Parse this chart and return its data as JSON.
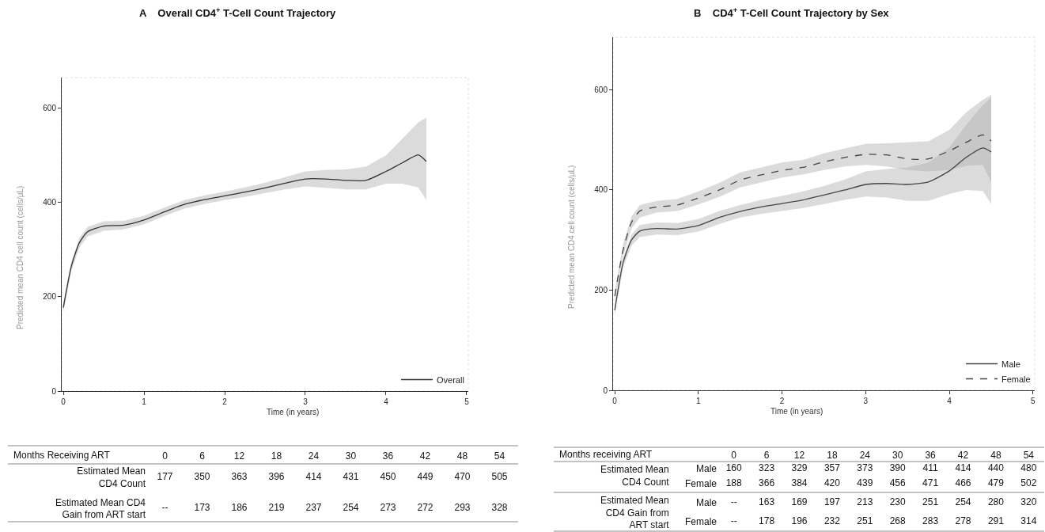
{
  "chart_data": [
    {
      "type": "line",
      "title": "A    Overall CD4$^{+}$ T-Cell Count Trajectory",
      "xlabel": "Time (in years)",
      "ylabel": "Predicted mean CD4 cell count (cells/µL)",
      "xlim": [
        -0.02,
        5.02
      ],
      "xticks": [
        0,
        1,
        2,
        3,
        4,
        5
      ],
      "ylim": [
        0,
        665
      ],
      "yticks": [
        0,
        200,
        400,
        600
      ],
      "grid": false,
      "legend": "bottom right",
      "x": [
        0,
        0.1,
        0.2,
        0.3,
        0.5,
        0.75,
        1,
        1.25,
        1.5,
        1.75,
        2,
        2.25,
        2.5,
        2.75,
        3,
        3.25,
        3.5,
        3.75,
        4,
        4.2,
        4.4,
        4.5
      ],
      "series": [
        {
          "name": "Overall",
          "color": "#333333",
          "line_style": "solid",
          "values": [
            177,
            265,
            315,
            338,
            350,
            352,
            363,
            380,
            396,
            406,
            414,
            422,
            431,
            441,
            450,
            450,
            447,
            447,
            466,
            484,
            501,
            487
          ],
          "lower": [
            167,
            255,
            305,
            328,
            340,
            343,
            354,
            371,
            387,
            397,
            405,
            412,
            420,
            428,
            434,
            431,
            428,
            428,
            440,
            440,
            432,
            405
          ],
          "upper": [
            187,
            275,
            325,
            348,
            360,
            361,
            372,
            389,
            405,
            415,
            423,
            432,
            442,
            454,
            466,
            469,
            470,
            476,
            500,
            535,
            570,
            580
          ]
        }
      ]
    },
    {
      "type": "line",
      "title": "B    CD4$^{+}$ T-Cell Count Trajectory by Sex",
      "xlabel": "Time (in years)",
      "ylabel": "Predicted mean CD4 cell count (cells/µL)",
      "xlim": [
        -0.02,
        5.02
      ],
      "xticks": [
        0,
        1,
        2,
        3,
        4,
        5
      ],
      "ylim": [
        0,
        705
      ],
      "yticks": [
        0,
        200,
        400,
        600
      ],
      "grid": false,
      "legend": "bottom right",
      "x": [
        0,
        0.1,
        0.2,
        0.3,
        0.5,
        0.75,
        1,
        1.25,
        1.5,
        1.75,
        2,
        2.25,
        2.5,
        2.75,
        3,
        3.25,
        3.5,
        3.75,
        4,
        4.2,
        4.4,
        4.5
      ],
      "series": [
        {
          "name": "Male",
          "color": "#444444",
          "line_style": "solid",
          "values": [
            160,
            255,
            300,
            318,
            323,
            322,
            329,
            345,
            357,
            366,
            373,
            380,
            390,
            400,
            411,
            413,
            411,
            416,
            438,
            465,
            484,
            476
          ],
          "lower": [
            150,
            245,
            289,
            306,
            311,
            310,
            317,
            332,
            345,
            352,
            358,
            364,
            372,
            380,
            387,
            385,
            378,
            378,
            392,
            400,
            398,
            372
          ],
          "upper": [
            170,
            265,
            311,
            330,
            335,
            334,
            342,
            358,
            370,
            380,
            388,
            397,
            408,
            421,
            437,
            442,
            445,
            455,
            485,
            530,
            570,
            585
          ]
        },
        {
          "name": "Female",
          "color": "#444444",
          "line_style": "dashed",
          "values": [
            188,
            280,
            335,
            358,
            366,
            370,
            384,
            400,
            420,
            430,
            439,
            445,
            456,
            465,
            471,
            470,
            462,
            462,
            478,
            495,
            510,
            498
          ],
          "lower": [
            178,
            268,
            323,
            345,
            355,
            358,
            371,
            386,
            405,
            415,
            425,
            431,
            440,
            447,
            450,
            447,
            440,
            437,
            440,
            448,
            450,
            415
          ],
          "upper": [
            198,
            292,
            347,
            370,
            378,
            382,
            397,
            414,
            435,
            445,
            455,
            460,
            473,
            483,
            492,
            493,
            495,
            497,
            520,
            555,
            580,
            590
          ]
        }
      ]
    },
    {
      "type": "heatmap",
      "data_labels": true,
      "xlabel": "Months Receiving ART",
      "categories": [
        "0",
        "6",
        "12",
        "18",
        "24",
        "30",
        "36",
        "42",
        "48",
        "54"
      ],
      "y_categories": [
        "Estimated Mean\nCD4 Count",
        "Estimated Mean CD4\nGain from ART start"
      ],
      "cells": [
        [
          177,
          350,
          363,
          396,
          414,
          431,
          450,
          449,
          470,
          505
        ],
        [
          null,
          173,
          186,
          219,
          237,
          254,
          273,
          272,
          293,
          328
        ]
      ],
      "annotations": [
        "--"
      ]
    },
    {
      "type": "heatmap",
      "data_labels": true,
      "xlabel": "Months receiving ART",
      "ylabel": "Estimated Mean\nCD4 Count",
      "categories": [
        "0",
        "6",
        "12",
        "18",
        "24",
        "30",
        "36",
        "42",
        "48",
        "54"
      ],
      "y_categories": [
        "Male",
        "Female"
      ],
      "cells": [
        [
          160,
          323,
          329,
          357,
          373,
          390,
          411,
          414,
          440,
          480
        ],
        [
          188,
          366,
          384,
          420,
          439,
          456,
          471,
          466,
          479,
          502
        ]
      ]
    },
    {
      "type": "heatmap",
      "data_labels": true,
      "ylabel": "Estimated Mean\nCD4 Gain from\nART start",
      "categories": [
        "0",
        "6",
        "12",
        "18",
        "24",
        "30",
        "36",
        "42",
        "48",
        "54"
      ],
      "tick_labels": "y",
      "y_categories": [
        "Male",
        "Female"
      ],
      "cells": [
        [
          null,
          163,
          169,
          197,
          213,
          230,
          251,
          254,
          280,
          320
        ],
        [
          null,
          178,
          196,
          232,
          251,
          268,
          283,
          278,
          291,
          314
        ]
      ],
      "annotations": [
        "--",
        "--"
      ]
    }
  ]
}
